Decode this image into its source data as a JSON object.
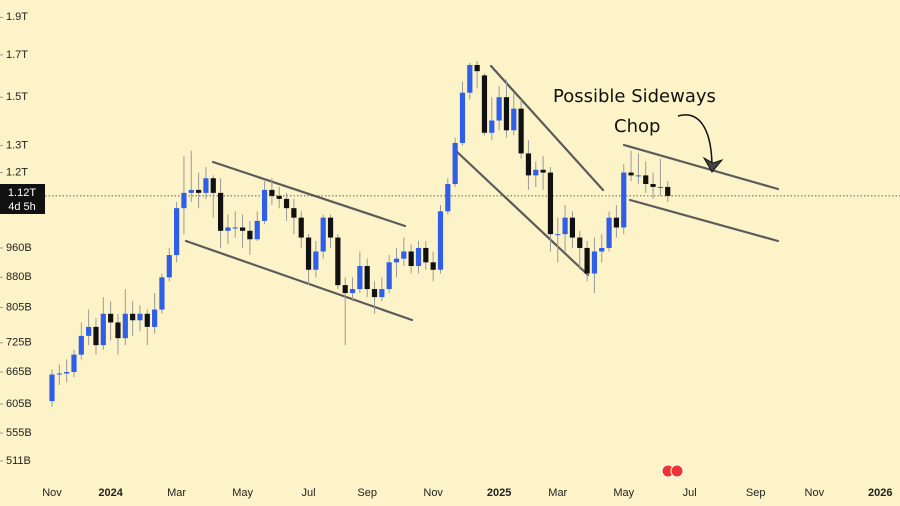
{
  "chart_data": {
    "type": "candlestick",
    "log_scale": true,
    "grid": false,
    "up_color": "#2f5fe8",
    "down_color": "#111111",
    "annotation": "Possible Sideways Chop",
    "price_label": {
      "value": 1120,
      "label": "1.12T"
    },
    "countdown": "4d 5h",
    "ylim": [
      483,
      2000
    ],
    "yticks": [
      {
        "value": 1900,
        "label": "1.9T"
      },
      {
        "value": 1700,
        "label": "1.7T"
      },
      {
        "value": 1500,
        "label": "1.5T"
      },
      {
        "value": 1300,
        "label": "1.3T"
      },
      {
        "value": 1200,
        "label": "1.2T"
      },
      {
        "value": 960,
        "label": "960B"
      },
      {
        "value": 880,
        "label": "880B"
      },
      {
        "value": 805,
        "label": "805B"
      },
      {
        "value": 725,
        "label": "725B"
      },
      {
        "value": 665,
        "label": "665B"
      },
      {
        "value": 605,
        "label": "605B"
      },
      {
        "value": 555,
        "label": "555B"
      },
      {
        "value": 511,
        "label": "511B"
      }
    ],
    "categories": [
      "Nov",
      null,
      null,
      null,
      null,
      null,
      null,
      null,
      "2024",
      null,
      null,
      null,
      null,
      null,
      null,
      null,
      null,
      "Mar",
      null,
      null,
      null,
      null,
      null,
      null,
      null,
      null,
      "May",
      null,
      null,
      null,
      null,
      null,
      null,
      null,
      null,
      "Jul",
      null,
      null,
      null,
      null,
      null,
      null,
      null,
      "Sep",
      null,
      null,
      null,
      null,
      null,
      null,
      null,
      null,
      "Nov",
      null,
      null,
      null,
      null,
      null,
      null,
      null,
      null,
      "2025",
      null,
      null,
      null,
      null,
      null,
      null,
      null,
      "Mar",
      null,
      null,
      null,
      null,
      null,
      null,
      null,
      null,
      "May",
      null,
      null,
      null,
      null,
      null,
      null,
      null,
      null,
      "Jul",
      null,
      null,
      null,
      null,
      null,
      null,
      null,
      null,
      "Sep",
      null,
      null,
      null,
      null,
      null,
      null,
      null,
      "Nov",
      null,
      null,
      null,
      null,
      null,
      null,
      null,
      null,
      "2026"
    ],
    "open": [
      610,
      660,
      662,
      665,
      700,
      740,
      760,
      720,
      790,
      770,
      735,
      790,
      775,
      790,
      760,
      800,
      880,
      940,
      1080,
      1130,
      1140,
      1130,
      1180,
      1130,
      1010,
      1020,
      1020,
      1010,
      985,
      1040,
      1140,
      1120,
      1110,
      1080,
      1050,
      990,
      900,
      950,
      1050,
      990,
      860,
      840,
      850,
      910,
      850,
      830,
      850,
      920,
      930,
      950,
      910,
      960,
      920,
      900,
      1070,
      1160,
      1310,
      1520,
      1650,
      1600,
      1350,
      1400,
      1500,
      1360,
      1450,
      1270,
      1190,
      1210,
      1200,
      1000,
      1000,
      1050,
      990,
      960,
      890,
      950,
      960,
      1050,
      1020,
      1200,
      1190,
      1190,
      1160,
      1150,
      1150,
      null,
      null,
      null,
      null,
      null,
      null,
      null,
      null,
      null,
      null,
      null,
      null,
      null,
      null,
      null,
      null,
      null,
      null,
      null,
      null,
      null,
      null,
      null,
      null,
      null,
      null,
      null,
      null,
      null
    ],
    "high": [
      670,
      680,
      690,
      710,
      770,
      800,
      780,
      830,
      820,
      790,
      850,
      820,
      810,
      800,
      840,
      890,
      960,
      1100,
      1260,
      1280,
      1200,
      1220,
      1190,
      1180,
      1060,
      1070,
      1060,
      1040,
      1070,
      1170,
      1180,
      1150,
      1130,
      1110,
      1070,
      1000,
      980,
      1060,
      1060,
      1000,
      880,
      880,
      950,
      930,
      870,
      880,
      940,
      960,
      990,
      970,
      980,
      980,
      950,
      1090,
      1180,
      1330,
      1570,
      1660,
      1670,
      1610,
      1500,
      1550,
      1580,
      1520,
      1490,
      1320,
      1240,
      1260,
      1220,
      1050,
      1090,
      1070,
      1010,
      980,
      990,
      1000,
      1070,
      1090,
      1230,
      1280,
      1270,
      1240,
      1200,
      1250,
      1170,
      null,
      null,
      null,
      null,
      null,
      null,
      null,
      null,
      null,
      null,
      null,
      null,
      null,
      null,
      null,
      null,
      null,
      null,
      null,
      null,
      null,
      null,
      null,
      null,
      null,
      null,
      null,
      null,
      null
    ],
    "low": [
      600,
      640,
      645,
      655,
      690,
      720,
      700,
      710,
      730,
      700,
      720,
      740,
      750,
      720,
      745,
      790,
      870,
      920,
      1000,
      1100,
      1080,
      1110,
      1050,
      960,
      970,
      990,
      960,
      940,
      980,
      1030,
      1090,
      1080,
      1040,
      1000,
      960,
      860,
      880,
      930,
      960,
      850,
      720,
      820,
      840,
      830,
      790,
      820,
      840,
      880,
      910,
      890,
      890,
      900,
      870,
      890,
      1060,
      1150,
      1300,
      1490,
      1540,
      1340,
      1320,
      1360,
      1330,
      1340,
      1250,
      1140,
      1150,
      1140,
      950,
      920,
      950,
      960,
      900,
      870,
      840,
      920,
      950,
      990,
      1000,
      1170,
      1160,
      1130,
      1110,
      1120,
      1100,
      null,
      null,
      null,
      null,
      null,
      null,
      null,
      null,
      null,
      null,
      null,
      null,
      null,
      null,
      null,
      null,
      null,
      null,
      null,
      null,
      null,
      null,
      null,
      null,
      null,
      null,
      null,
      null,
      null
    ],
    "close": [
      660,
      662,
      665,
      700,
      740,
      760,
      720,
      790,
      770,
      735,
      790,
      775,
      790,
      760,
      800,
      880,
      940,
      1080,
      1130,
      1140,
      1130,
      1180,
      1130,
      1010,
      1020,
      1020,
      1010,
      985,
      1040,
      1140,
      1120,
      1110,
      1080,
      1050,
      990,
      900,
      950,
      1050,
      990,
      860,
      840,
      850,
      910,
      850,
      830,
      850,
      920,
      930,
      950,
      910,
      960,
      920,
      900,
      1070,
      1160,
      1310,
      1520,
      1650,
      1620,
      1350,
      1400,
      1500,
      1360,
      1450,
      1270,
      1190,
      1210,
      1200,
      1000,
      1000,
      1050,
      990,
      960,
      890,
      950,
      960,
      1050,
      1020,
      1200,
      1190,
      1190,
      1160,
      1150,
      1150,
      1120,
      null,
      null,
      null,
      null,
      null,
      null,
      null,
      null,
      null,
      null,
      null,
      null,
      null,
      null,
      null,
      null,
      null,
      null,
      null,
      null,
      null,
      null,
      null,
      null,
      null,
      null,
      null,
      null,
      null
    ]
  }
}
